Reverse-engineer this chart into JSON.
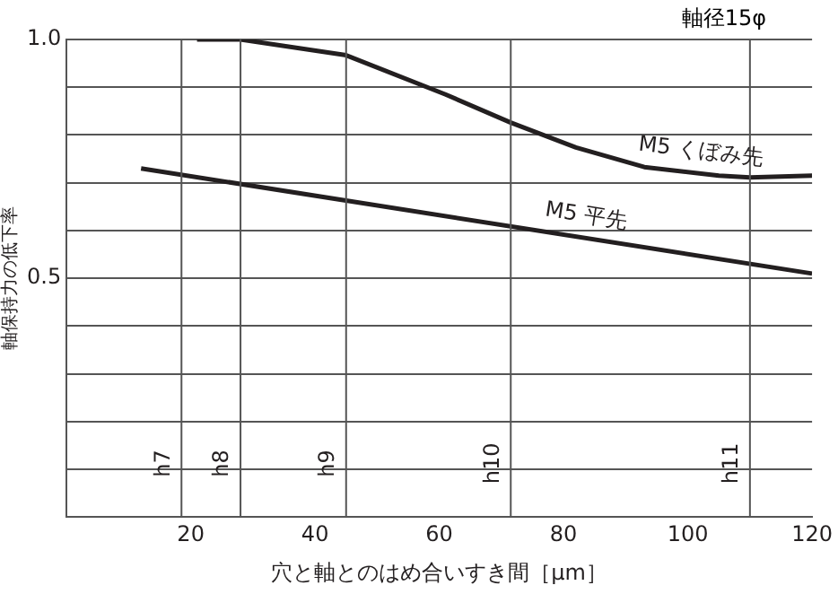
{
  "chart_data": {
    "type": "line",
    "title": "軸径15φ",
    "xlabel": "穴と軸とのはめ合いすき間［μm］",
    "ylabel": "軸保持力の低下率",
    "xlim": [
      0,
      120
    ],
    "xticks": [
      20,
      40,
      60,
      80,
      100,
      120
    ],
    "ylim": [
      0,
      1
    ],
    "yticks": [
      {
        "value": 0,
        "label": null
      },
      {
        "value": 0.1,
        "label": null
      },
      {
        "value": 0.2,
        "label": null
      },
      {
        "value": 0.3,
        "label": null
      },
      {
        "value": 0.4,
        "label": null
      },
      0.5,
      {
        "value": 0.6,
        "label": null
      },
      {
        "value": 0.7,
        "label": null
      },
      {
        "value": 0.8,
        "label": null
      },
      {
        "value": 0.9,
        "label": null
      },
      {
        "value": 1,
        "label": "1.0"
      }
    ],
    "grid": "y",
    "legend": false,
    "marker": "none",
    "line_style": "solid",
    "series": [
      {
        "name": "M5 くぼみ先",
        "color": "#231f20",
        "x": [
          21,
          28,
          45,
          61,
          71.5,
          82,
          93,
          105,
          110,
          120
        ],
        "values": [
          1.0,
          1.0,
          0.967,
          0.885,
          0.826,
          0.774,
          0.733,
          0.715,
          0.711,
          0.715
        ]
      },
      {
        "name": "M5 平先",
        "color": "#231f20",
        "x": [
          12,
          120
        ],
        "values": [
          0.73,
          0.51
        ]
      }
    ],
    "ref_lines": [
      {
        "axis": "x",
        "value": 18.5,
        "label": "h7"
      },
      {
        "axis": "x",
        "value": 28,
        "label": "h8"
      },
      {
        "axis": "x",
        "value": 45,
        "label": "h9"
      },
      {
        "axis": "x",
        "value": 71.5,
        "label": "h10"
      },
      {
        "axis": "x",
        "value": 110,
        "label": "h11"
      }
    ]
  }
}
